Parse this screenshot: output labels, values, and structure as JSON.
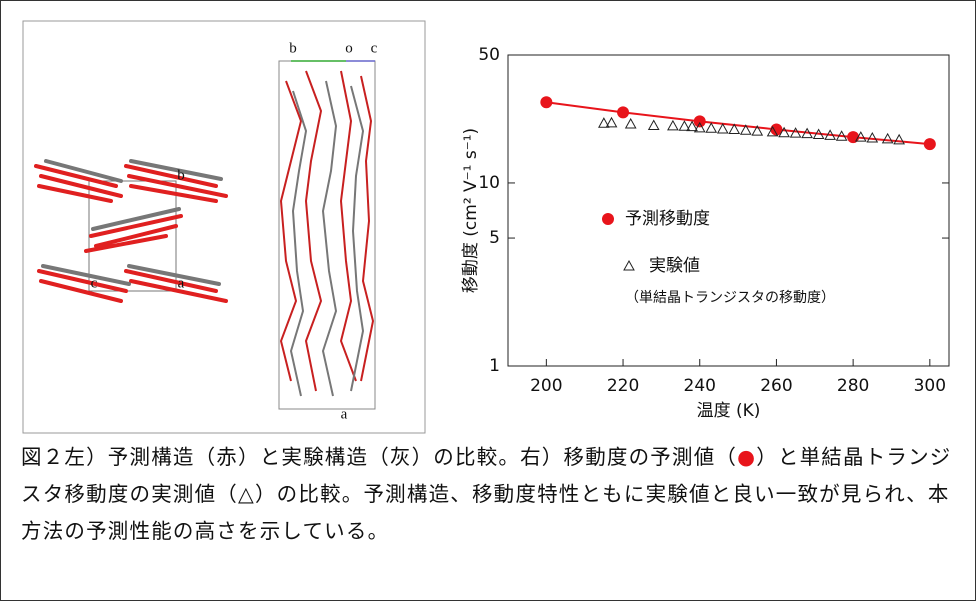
{
  "chart_data": {
    "type": "scatter",
    "log_y": true,
    "xlabel": "温度 (K)",
    "ylabel": "移動度 (cm² V⁻¹ s⁻¹)",
    "xlim": [
      190,
      305
    ],
    "xticks": [
      200,
      220,
      240,
      260,
      280,
      300
    ],
    "ylim": [
      1,
      50
    ],
    "yticks": [
      1,
      5,
      10,
      50
    ],
    "series": [
      {
        "name": "予測移動度",
        "color": "#e8141b",
        "marker": "circle",
        "line": true,
        "x": [
          200,
          220,
          240,
          260,
          280,
          300
        ],
        "values": [
          27.6,
          24.3,
          21.7,
          19.6,
          17.8,
          16.3
        ]
      },
      {
        "name": "実験値",
        "color": "#222222",
        "marker": "triangle",
        "line": false,
        "x": [
          215,
          217,
          222,
          228,
          233,
          236,
          238,
          240,
          243,
          246,
          249,
          252,
          255,
          259,
          262,
          265,
          268,
          271,
          274,
          277,
          282,
          285,
          289,
          292
        ],
        "values": [
          21.2,
          21.3,
          21.0,
          20.6,
          20.5,
          20.4,
          20.3,
          20.0,
          19.9,
          19.7,
          19.6,
          19.4,
          19.2,
          19.0,
          18.8,
          18.7,
          18.6,
          18.4,
          18.2,
          18.0,
          17.8,
          17.6,
          17.4,
          17.2
        ]
      }
    ],
    "legend_note": "（単結晶トランジスタの移動度）"
  },
  "structure_labels": {
    "left": [
      "b",
      "c",
      "a"
    ],
    "right": [
      "b",
      "o",
      "c",
      "a"
    ]
  },
  "caption": {
    "before": "図２左）予測構造（赤）と実験構造（灰）の比較。右）移動度の予測値（",
    "marker": "●",
    "after": "）と単結晶トランジスタ移動度の実測値（△）の比較。予測構造、移動度特性ともに実験値と良い一致が見られ、本方法の予測性能の高さを示している。"
  }
}
